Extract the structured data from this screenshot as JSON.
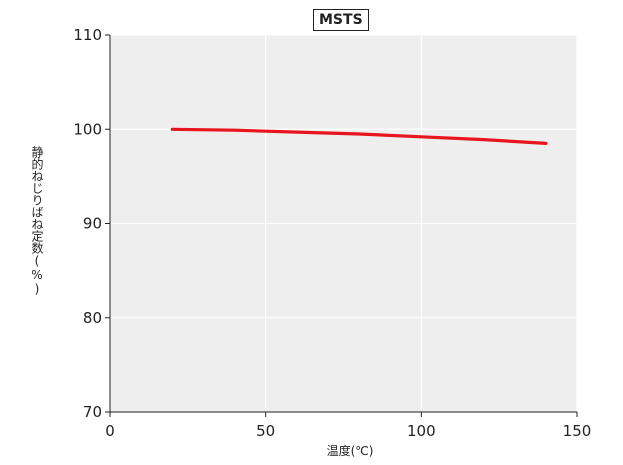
{
  "chart_data": {
    "type": "line",
    "title": "MSTS",
    "xlabel": "温度(℃)",
    "ylabel": "静的ねじりばね定数(%)",
    "xlim": [
      0,
      150
    ],
    "ylim": [
      70,
      110
    ],
    "xticks": [
      0,
      50,
      100,
      150
    ],
    "yticks": [
      70,
      80,
      90,
      100,
      110
    ],
    "grid": true,
    "series": [
      {
        "color": "#e8141e",
        "x": [
          20,
          40,
          60,
          80,
          100,
          120,
          140
        ],
        "y": [
          100.0,
          99.9,
          99.7,
          99.5,
          99.2,
          98.9,
          98.5
        ]
      }
    ]
  }
}
